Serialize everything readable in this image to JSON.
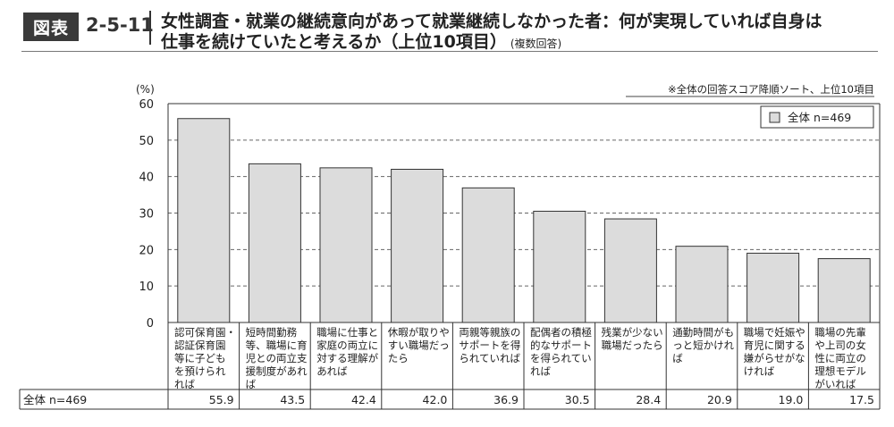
{
  "header": {
    "badge": "図表",
    "number": "2-5-11",
    "title_line1": "女性調査・就業の継続意向があって就業継続しなかった者：何が実現していれば自身は",
    "title_line2": "仕事を続けていたと考えるか（上位10項目）",
    "title_note": "(複数回答)"
  },
  "chart_data": {
    "type": "bar",
    "ylabel": "(%)",
    "ylim": [
      0,
      60
    ],
    "yticks": [
      0,
      10,
      20,
      30,
      40,
      50,
      60
    ],
    "grid": true,
    "legend_position": "top-right",
    "annotation": "※全体の回答スコア降順ソート、上位10項目",
    "categories": [
      "認可保育園・認証保育園等に子どもを預けられれば",
      "短時間勤務等、職場に育児との両立支援制度があれば",
      "職場に仕事と家庭の両立に対する理解があれば",
      "休暇が取りやすい職場だったら",
      "両親等親族のサポートを得られていれば",
      "配偶者の積極的なサポートを得られていれば",
      "残業が少ない職場だったら",
      "通勤時間がもっと短かければ",
      "職場で妊娠や育児に関する嫌がらせがなければ",
      "職場の先輩や上司の女性に両立の理想モデルがいれば"
    ],
    "category_lines": [
      [
        "認可保育園・",
        "認証保育園",
        "等に子ども",
        "を預けられ",
        "れば"
      ],
      [
        "短時間勤務",
        "等、職場に育",
        "児との両立支",
        "援制度があれ",
        "ば"
      ],
      [
        "職場に仕事と",
        "家庭の両立に",
        "対する理解が",
        "あれば"
      ],
      [
        "休暇が取りや",
        "すい職場だっ",
        "たら"
      ],
      [
        "両親等親族の",
        "サポートを得",
        "られていれば"
      ],
      [
        "配偶者の積極",
        "的なサポート",
        "を得られてい",
        "れば"
      ],
      [
        "残業が少ない",
        "職場だったら"
      ],
      [
        "通勤時間がも",
        "っと短かけれ",
        "ば"
      ],
      [
        "職場で妊娠や",
        "育児に関する",
        "嫌がらせがな",
        "ければ"
      ],
      [
        "職場の先輩",
        "や上司の女",
        "性に両立の",
        "理想モデル",
        "がいれば"
      ]
    ],
    "series": [
      {
        "name": "全体 n=469",
        "color": "#dcdcdc",
        "values": [
          55.9,
          43.5,
          42.4,
          42.0,
          36.9,
          30.5,
          28.4,
          20.9,
          19.0,
          17.5
        ]
      }
    ],
    "table": {
      "row_label": "全体 n=469",
      "values": [
        "55.9",
        "43.5",
        "42.4",
        "42.0",
        "36.9",
        "30.5",
        "28.4",
        "20.9",
        "19.0",
        "17.5"
      ]
    }
  }
}
